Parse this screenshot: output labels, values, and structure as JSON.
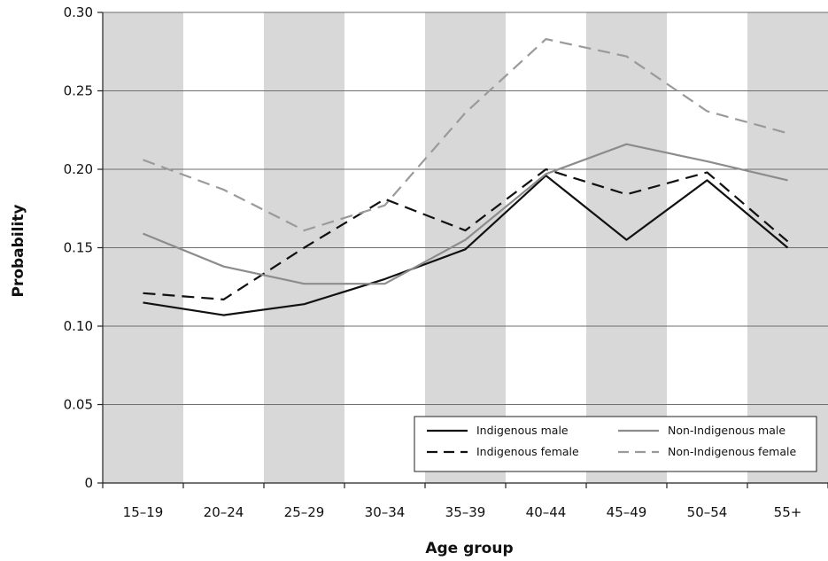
{
  "chart_data": {
    "type": "line",
    "title": "",
    "xlabel": "Age group",
    "ylabel": "Probability",
    "ylim": [
      0,
      0.3
    ],
    "yticks": [
      0,
      0.05,
      0.1,
      0.15,
      0.2,
      0.25,
      0.3
    ],
    "ytick_labels": [
      "0",
      "0.05",
      "0.10",
      "0.15",
      "0.20",
      "0.25",
      "0.30"
    ],
    "categories": [
      "15–19",
      "20–24",
      "25–29",
      "30–34",
      "35–39",
      "40–44",
      "45–49",
      "50–54",
      "55+"
    ],
    "band_shading": "alternating",
    "grid": "horizontal",
    "legend_position": "bottom-right",
    "series": [
      {
        "name": "Indigenous male",
        "color": "#111111",
        "dash": "solid",
        "values": [
          0.115,
          0.107,
          0.114,
          0.13,
          0.149,
          0.196,
          0.155,
          0.193,
          0.15
        ]
      },
      {
        "name": "Indigenous female",
        "color": "#111111",
        "dash": "dashed",
        "values": [
          0.121,
          0.117,
          0.15,
          0.181,
          0.161,
          0.2,
          0.184,
          0.198,
          0.154
        ]
      },
      {
        "name": "Non-Indigenous male",
        "color": "#8c8c8c",
        "dash": "solid",
        "values": [
          0.159,
          0.138,
          0.127,
          0.127,
          0.155,
          0.197,
          0.216,
          0.205,
          0.193
        ]
      },
      {
        "name": "Non-Indigenous female",
        "color": "#9a9a9a",
        "dash": "dashed",
        "values": [
          0.206,
          0.187,
          0.161,
          0.177,
          0.236,
          0.283,
          0.272,
          0.237,
          0.223
        ]
      }
    ]
  }
}
